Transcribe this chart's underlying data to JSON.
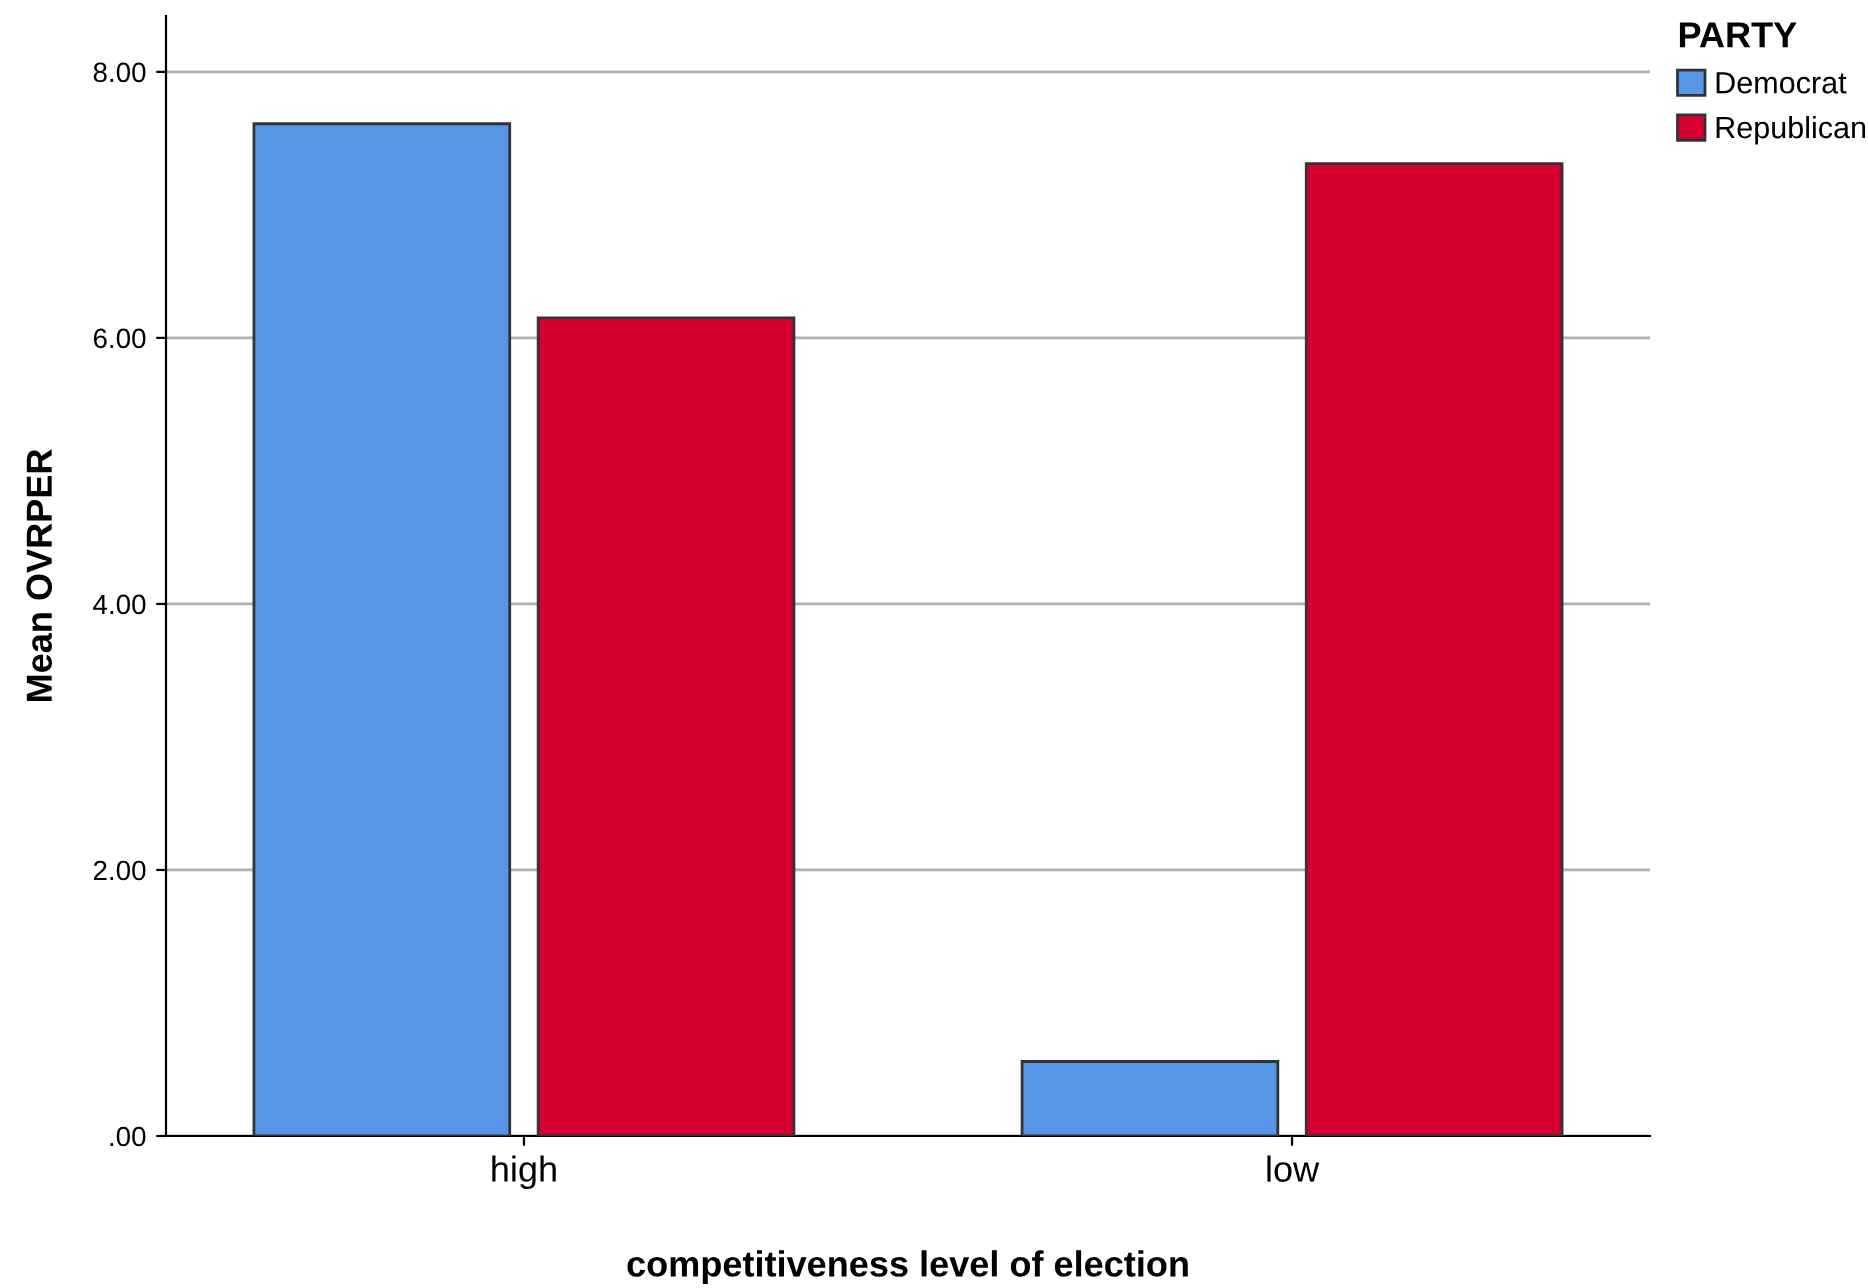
{
  "chart_data": {
    "type": "bar",
    "xlabel": "competitiveness level of election",
    "ylabel": "Mean OVRPER",
    "legend_title": "PARTY",
    "categories": [
      "high",
      "low"
    ],
    "series": [
      {
        "name": "Democrat",
        "color": "#5597e6",
        "values": [
          7.61,
          0.56
        ]
      },
      {
        "name": "Republican",
        "color": "#d5002f",
        "values": [
          6.15,
          7.31
        ]
      }
    ],
    "ylim": [
      0,
      8.42
    ],
    "yticks": [
      {
        "value": 0,
        "label": ".00"
      },
      {
        "value": 2,
        "label": "2.00"
      },
      {
        "value": 4,
        "label": "4.00"
      },
      {
        "value": 6,
        "label": "6.00"
      },
      {
        "value": 8,
        "label": "8.00"
      }
    ],
    "grid": "y",
    "legend": "top right"
  }
}
